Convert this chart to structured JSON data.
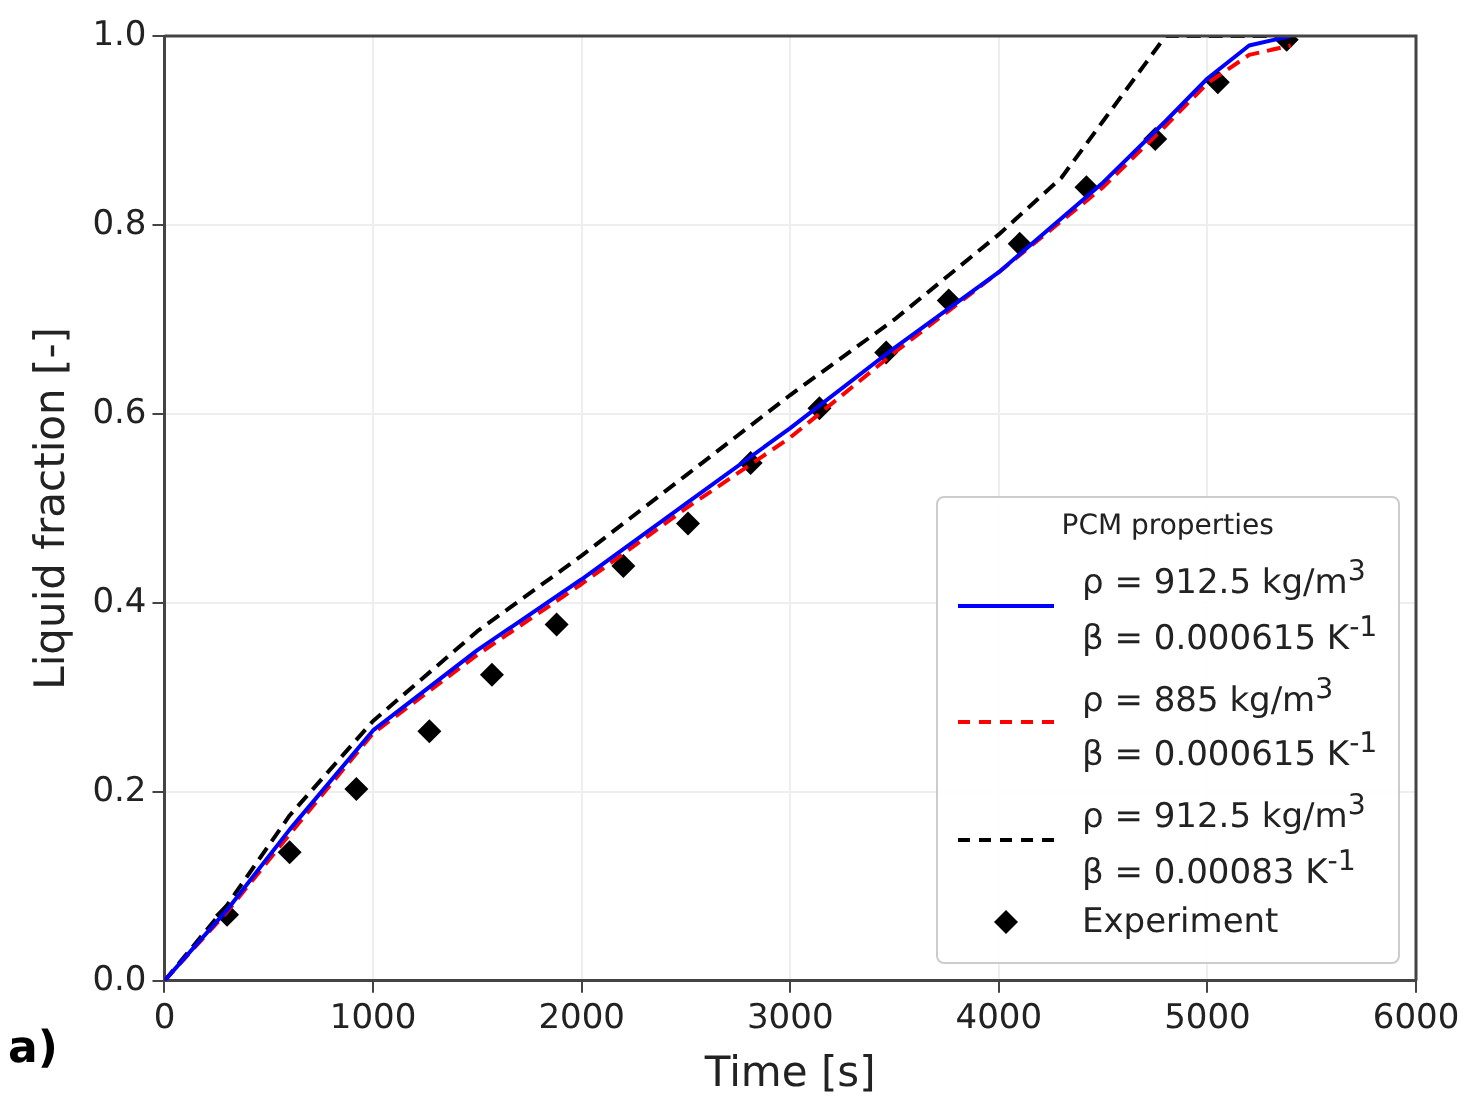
{
  "chart_data": {
    "type": "line",
    "xlabel": "Time [s]",
    "ylabel": "Liquid fraction [-]",
    "legend_title": "PCM properties",
    "legend": "bottom right",
    "grid": true,
    "xlim": [
      0,
      6000
    ],
    "xticks": [
      0,
      1000,
      2000,
      3000,
      4000,
      5000,
      6000
    ],
    "ylim": [
      0,
      1
    ],
    "yticks": [
      {
        "value": 0,
        "label": "0.0"
      },
      {
        "value": 0.2,
        "label": "0.2"
      },
      {
        "value": 0.4,
        "label": "0.4"
      },
      {
        "value": 0.6,
        "label": "0.6"
      },
      {
        "value": 0.8,
        "label": "0.8"
      },
      {
        "value": 1,
        "label": "1.0"
      }
    ],
    "annotations": [
      "a)"
    ],
    "series": [
      {
        "name": "ρ = 912.5 kg/m$^{3}$\nβ = 0.000615 K$^{-1}$",
        "color": "#0000ff",
        "line_style": "solid",
        "marker": "none",
        "x": [
          0,
          300,
          600,
          1000,
          1500,
          2000,
          2500,
          3000,
          3500,
          4000,
          4500,
          4800,
          5000,
          5200,
          5400
        ],
        "values": [
          0,
          0.075,
          0.16,
          0.265,
          0.35,
          0.425,
          0.505,
          0.585,
          0.67,
          0.75,
          0.845,
          0.91,
          0.955,
          0.99,
          1.0
        ]
      },
      {
        "name": "ρ = 885 kg/m$^{3}$\nβ = 0.000615 K$^{-1}$",
        "color": "#ff0000",
        "line_style": "dashed",
        "marker": "none",
        "x": [
          0,
          300,
          600,
          1000,
          1500,
          2000,
          2500,
          3000,
          3500,
          4000,
          4500,
          4800,
          5000,
          5200,
          5400
        ],
        "values": [
          0,
          0.073,
          0.155,
          0.262,
          0.345,
          0.42,
          0.5,
          0.575,
          0.665,
          0.75,
          0.84,
          0.905,
          0.95,
          0.98,
          0.99
        ]
      },
      {
        "name": "ρ = 912.5 kg/m$^{3}$\nβ = 0.00083 K$^{-1}$",
        "color": "#000000",
        "line_style": "dashed",
        "marker": "none",
        "x": [
          0,
          300,
          600,
          1000,
          1500,
          2000,
          2500,
          3000,
          3500,
          4000,
          4300,
          4500,
          4700,
          4800,
          5400
        ],
        "values": [
          0,
          0.08,
          0.175,
          0.275,
          0.37,
          0.45,
          0.535,
          0.62,
          0.7,
          0.79,
          0.85,
          0.91,
          0.97,
          1.0,
          1.0
        ]
      },
      {
        "name": "Experiment",
        "type": "scatter",
        "color": "#000000",
        "marker": "diamond",
        "x": [
          300,
          600,
          920,
          1270,
          1570,
          1880,
          2200,
          2510,
          2810,
          3140,
          3460,
          3760,
          4100,
          4420,
          4750,
          5050,
          5380
        ],
        "values": [
          0.07,
          0.136,
          0.203,
          0.264,
          0.324,
          0.377,
          0.439,
          0.484,
          0.548,
          0.606,
          0.665,
          0.72,
          0.78,
          0.84,
          0.891,
          0.951,
          0.996
        ]
      }
    ]
  }
}
